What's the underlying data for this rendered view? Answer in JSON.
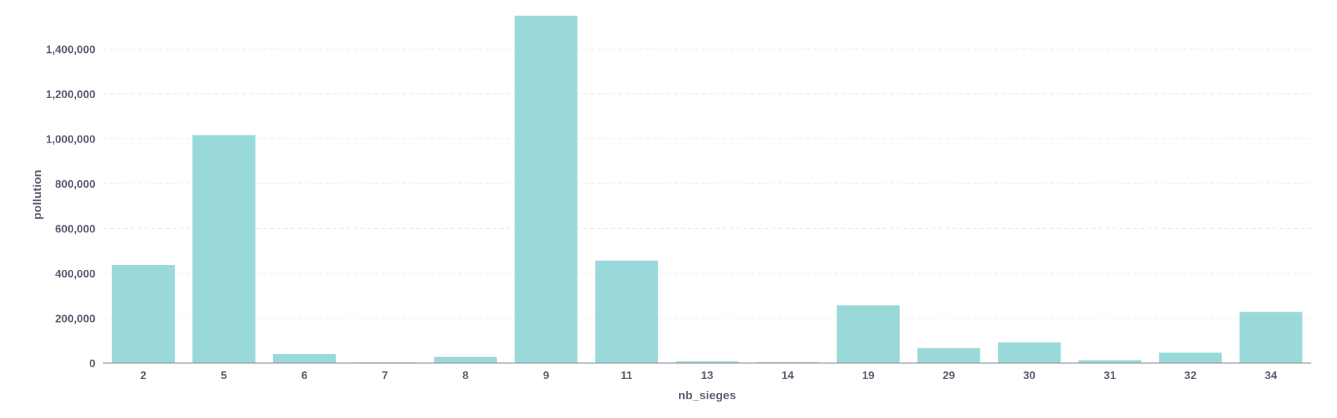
{
  "chart_data": {
    "type": "bar",
    "xlabel": "nb_sieges",
    "ylabel": "pollution",
    "categories": [
      "2",
      "5",
      "6",
      "7",
      "8",
      "9",
      "11",
      "13",
      "14",
      "19",
      "29",
      "30",
      "31",
      "32",
      "34"
    ],
    "values": [
      437000,
      1016000,
      40000,
      3000,
      28000,
      1548000,
      457000,
      8000,
      4000,
      257000,
      67000,
      92000,
      12000,
      47000,
      228000
    ],
    "ylim": [
      0,
      1550000
    ],
    "yticks": [
      0,
      200000,
      400000,
      600000,
      800000,
      1000000,
      1200000,
      1400000
    ],
    "grid": true,
    "bar_color": "#9ad9d9"
  }
}
